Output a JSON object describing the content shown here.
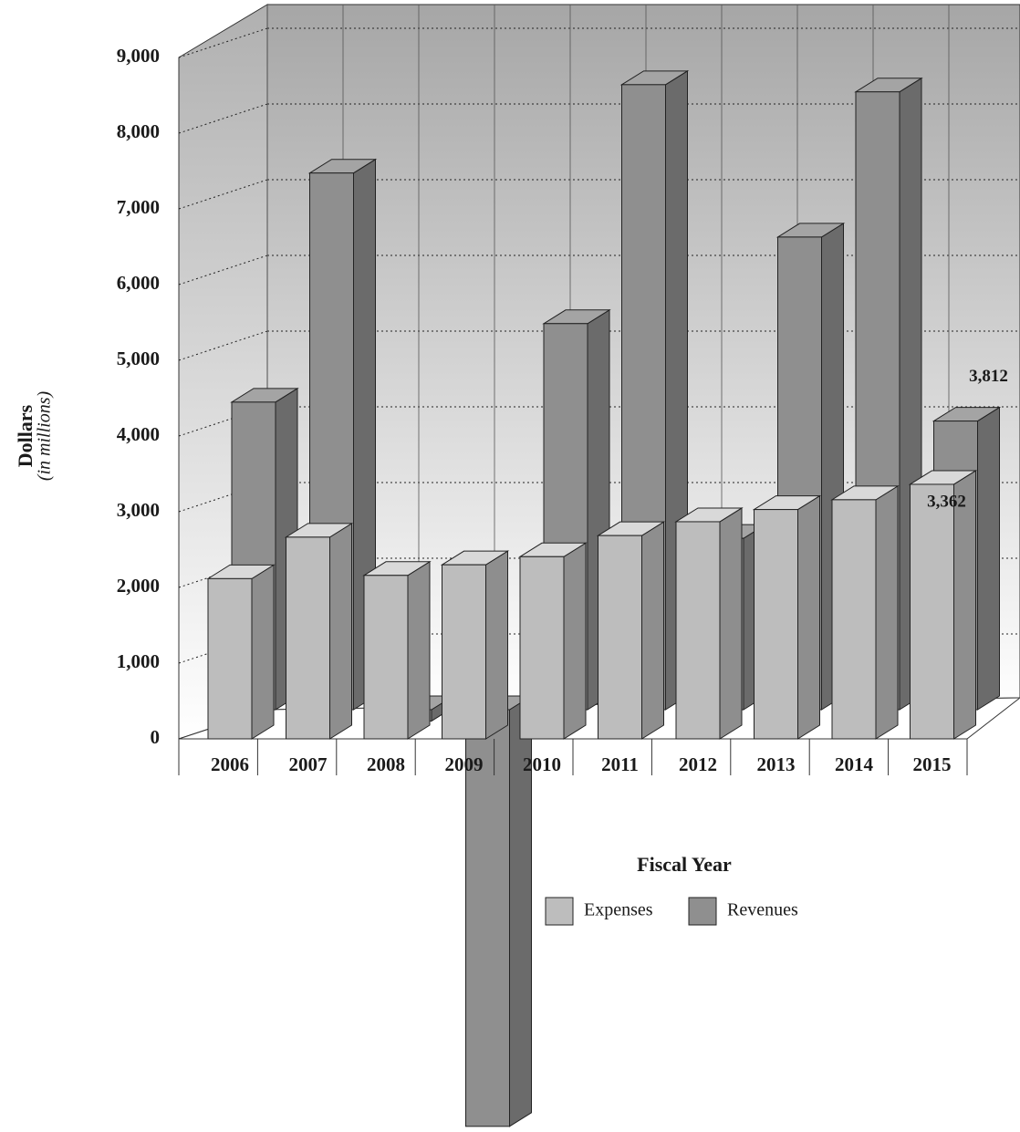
{
  "chart_data": {
    "type": "bar3d",
    "y_label": "Dollars",
    "y_sublabel": "(in millions)",
    "x_label": "Fiscal Year",
    "categories": [
      "2006",
      "2007",
      "2008",
      "2009",
      "2010",
      "2011",
      "2012",
      "2013",
      "2014",
      "2015"
    ],
    "series": [
      {
        "name": "Expenses",
        "color": "#bdbdbd",
        "values": [
          2116,
          2664,
          2159,
          2299,
          2406,
          2685,
          2868,
          3029,
          3158,
          3362
        ],
        "value_labels": [
          null,
          null,
          null,
          null,
          null,
          null,
          null,
          null,
          null,
          "3,362"
        ]
      },
      {
        "name": "Revenues",
        "color": "#8f8f8f",
        "values": [
          4062,
          7088,
          -150,
          -5504,
          5099,
          8255,
          2263,
          6242,
          8160,
          3812
        ],
        "value_labels": [
          null,
          null,
          null,
          null,
          null,
          null,
          null,
          null,
          null,
          "3,812"
        ]
      }
    ],
    "ylim": [
      0,
      9000
    ],
    "yticks": [
      0,
      {
        "value": 1000,
        "label": "1,000"
      },
      {
        "value": 2000,
        "label": "2,000"
      },
      {
        "value": 3000,
        "label": "3,000"
      },
      {
        "value": 4000,
        "label": "4,000"
      },
      {
        "value": 5000,
        "label": "5,000"
      },
      {
        "value": 6000,
        "label": "6,000"
      },
      {
        "value": 7000,
        "label": "7,000"
      },
      {
        "value": 8000,
        "label": "8,000"
      },
      {
        "value": 9000,
        "label": "9,000"
      }
    ],
    "grid": true
  }
}
